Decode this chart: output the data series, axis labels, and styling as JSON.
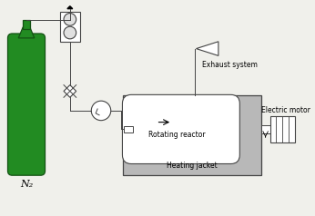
{
  "bg_color": "#f0f0eb",
  "line_color": "#444444",
  "gray_fill": "#b8b8b8",
  "white_fill": "#ffffff",
  "green_fill": "#228B22",
  "dark_green": "#145214",
  "labels": {
    "n2": "N₂",
    "exhaust": "Exhaust system",
    "rotating": "Rotating reactor",
    "heating": "Heating jacket",
    "electric": "Electric motor"
  },
  "label_fontsize": 5.5,
  "lw": 0.7
}
